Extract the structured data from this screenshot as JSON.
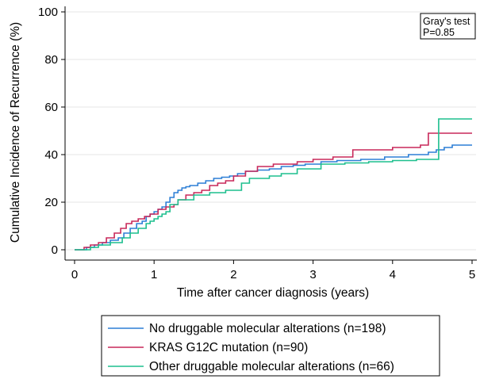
{
  "chart_data": {
    "type": "line",
    "xlabel": "Time after cancer diagnosis (years)",
    "ylabel": "Cumulative Incidence of Recurrence (%)",
    "xlim": [
      0,
      5
    ],
    "ylim": [
      0,
      100
    ],
    "xticks": [
      "0",
      "1",
      "2",
      "3",
      "4",
      "5"
    ],
    "yticks": [
      "0",
      "20",
      "40",
      "60",
      "80",
      "100"
    ],
    "grid": true,
    "annotation": [
      "Gray's test",
      "P=0.85"
    ],
    "legend_position": "bottom",
    "series": [
      {
        "name": "No druggable molecular alterations (n=198)",
        "color": "#2d7fd6",
        "x": [
          0,
          0.15,
          0.25,
          0.35,
          0.45,
          0.55,
          0.62,
          0.7,
          0.78,
          0.85,
          0.9,
          0.95,
          1.0,
          1.05,
          1.1,
          1.15,
          1.2,
          1.25,
          1.3,
          1.35,
          1.4,
          1.45,
          1.55,
          1.65,
          1.75,
          1.85,
          1.95,
          2.05,
          2.15,
          2.3,
          2.45,
          2.6,
          2.75,
          2.9,
          3.1,
          3.3,
          3.6,
          3.9,
          4.2,
          4.45,
          4.55,
          4.65,
          4.75,
          5.0
        ],
        "y": [
          0,
          1,
          2,
          3,
          4,
          5,
          7,
          9,
          11,
          12,
          14,
          15,
          16,
          17,
          18,
          20,
          22,
          24,
          25,
          26,
          26.5,
          27,
          28,
          29,
          30,
          30.5,
          31,
          32,
          33,
          33.5,
          34,
          35,
          35.5,
          36,
          37,
          37.5,
          38,
          39,
          40,
          41,
          42,
          43,
          44,
          44
        ]
      },
      {
        "name": "KRAS G12C mutation (n=90)",
        "color": "#c8285a",
        "x": [
          0,
          0.12,
          0.2,
          0.3,
          0.4,
          0.5,
          0.58,
          0.65,
          0.72,
          0.8,
          0.88,
          0.95,
          1.05,
          1.15,
          1.25,
          1.3,
          1.4,
          1.5,
          1.6,
          1.7,
          1.8,
          1.9,
          2.0,
          2.15,
          2.3,
          2.5,
          2.8,
          3.0,
          3.25,
          3.5,
          4.0,
          4.35,
          4.45,
          5.0
        ],
        "y": [
          0,
          1,
          2,
          3,
          5,
          7,
          9,
          11,
          12,
          13,
          14,
          15,
          17,
          18,
          19,
          21,
          23,
          24,
          25,
          27,
          28,
          29,
          31,
          33,
          35,
          36,
          37,
          38,
          39,
          42,
          43,
          44,
          49,
          49
        ]
      },
      {
        "name": "Other druggable molecular alterations (n=66)",
        "color": "#1dbf8e",
        "x": [
          0,
          0.2,
          0.3,
          0.45,
          0.6,
          0.7,
          0.8,
          0.9,
          0.95,
          1.0,
          1.05,
          1.1,
          1.15,
          1.2,
          1.3,
          1.5,
          1.7,
          1.9,
          2.1,
          2.2,
          2.45,
          2.6,
          2.8,
          3.1,
          3.4,
          3.7,
          4.0,
          4.3,
          4.58,
          5.0
        ],
        "y": [
          0,
          1,
          2,
          3,
          5,
          7,
          9,
          11,
          12,
          13,
          14,
          15,
          16,
          19,
          21,
          23,
          24,
          25,
          28,
          30,
          31,
          32,
          34,
          36,
          36.5,
          37,
          37.5,
          38,
          55,
          55
        ]
      }
    ]
  }
}
